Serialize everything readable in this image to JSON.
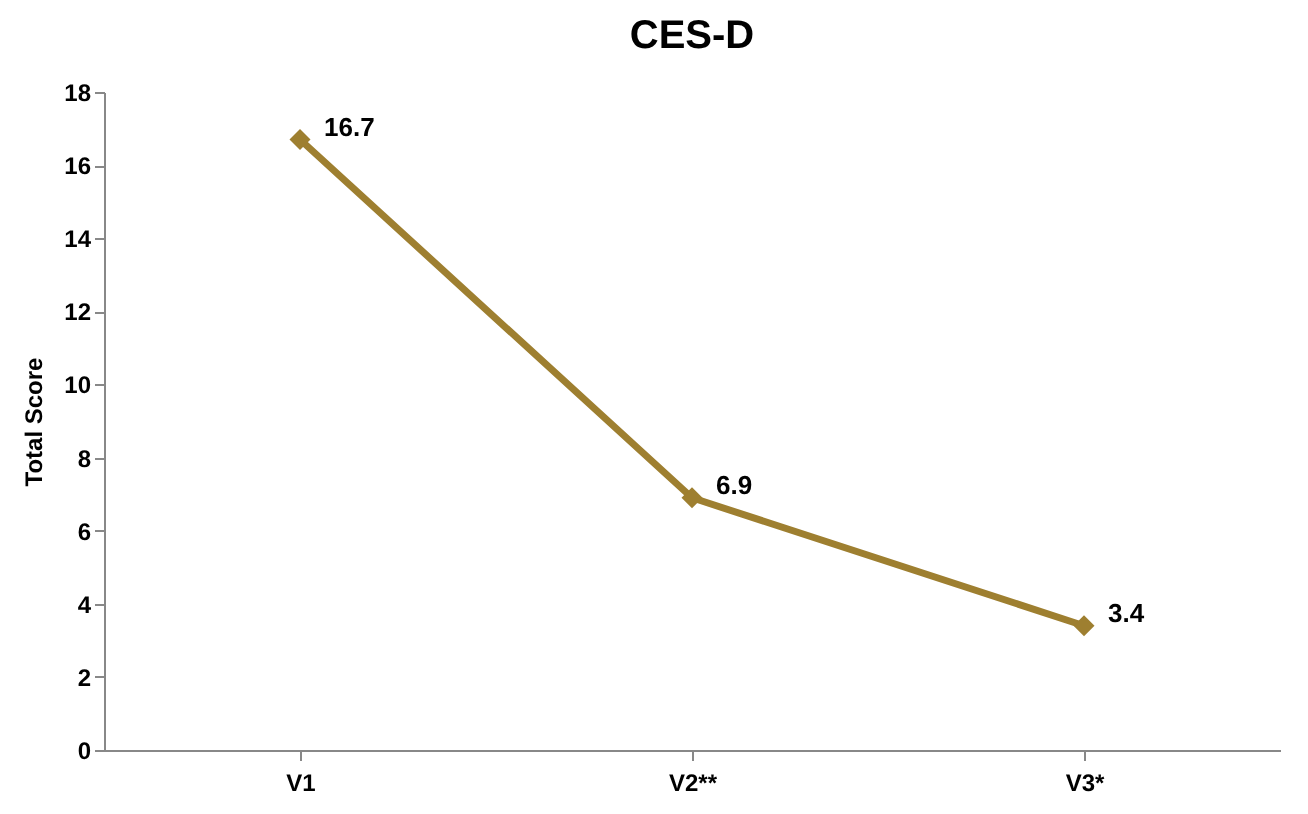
{
  "chart_data": {
    "type": "line",
    "title": "CES-D",
    "ylabel": "Total Score",
    "categories": [
      "V1",
      "V2**",
      "V3*"
    ],
    "series": [
      {
        "color": "#9e7f30",
        "values": [
          16.7,
          6.9,
          3.4
        ]
      }
    ],
    "ylim": [
      0,
      18
    ],
    "yticks": [
      0,
      2,
      4,
      6,
      8,
      10,
      12,
      14,
      16,
      18
    ],
    "grid": false,
    "legend": false,
    "marker": "diamond",
    "line_style": "solid",
    "data_labels": true
  }
}
